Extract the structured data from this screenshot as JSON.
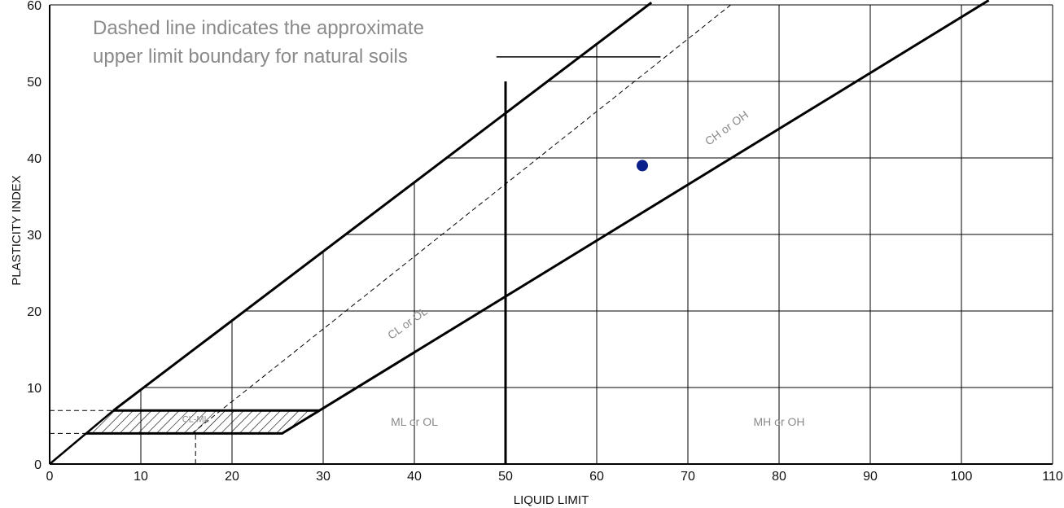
{
  "chart_data": {
    "type": "scatter",
    "title": "",
    "xlabel": "LIQUID LIMIT",
    "ylabel": "PLASTICITY INDEX",
    "xlim": [
      0,
      110
    ],
    "ylim": [
      0,
      60
    ],
    "x_ticks": [
      0,
      10,
      20,
      30,
      40,
      50,
      60,
      70,
      80,
      90,
      100,
      110
    ],
    "y_ticks": [
      0,
      10,
      20,
      30,
      40,
      50,
      60
    ],
    "grid": true,
    "points": [
      {
        "x": 65,
        "y": 39
      }
    ],
    "point_color": "#0b1f8a",
    "lines": {
      "u_line": [
        [
          7,
          7
        ],
        [
          66,
          60.3
        ]
      ],
      "a_line": [
        [
          4,
          4
        ],
        [
          25.5,
          4
        ],
        [
          29.6,
          7
        ],
        [
          103,
          60.6
        ]
      ],
      "cl_ml_top": [
        [
          7,
          7
        ],
        [
          29.6,
          7
        ]
      ],
      "ll50": [
        [
          50,
          0
        ],
        [
          50,
          50
        ]
      ],
      "dashed_boundary": [
        [
          15.6,
          4
        ],
        [
          74.7,
          60
        ]
      ],
      "ref_pi7": [
        [
          0,
          7
        ],
        [
          7,
          7
        ]
      ],
      "ref_pi4": [
        [
          0,
          4
        ],
        [
          4,
          4
        ]
      ],
      "ref_ll16": [
        [
          16,
          0
        ],
        [
          16,
          4
        ]
      ]
    },
    "zone_labels": [
      {
        "text": "CL-ML",
        "x": 16,
        "y": 5.5,
        "rotate": 0
      },
      {
        "text": "ML or OL",
        "x": 40,
        "y": 5,
        "rotate": 0
      },
      {
        "text": "MH or OH",
        "x": 80,
        "y": 5,
        "rotate": 0
      },
      {
        "text": "CL or OL",
        "x": 39.5,
        "y": 18,
        "rotate": -36
      },
      {
        "text": "CH or OH",
        "x": 74.5,
        "y": 43.5,
        "rotate": -36
      }
    ],
    "annotation": {
      "lines": [
        "Dashed line indicates the approximate",
        "upper limit boundary for natural soils"
      ]
    },
    "colors": {
      "line": "#000000",
      "grid": "#000000",
      "label": "#8a8a8a"
    }
  }
}
